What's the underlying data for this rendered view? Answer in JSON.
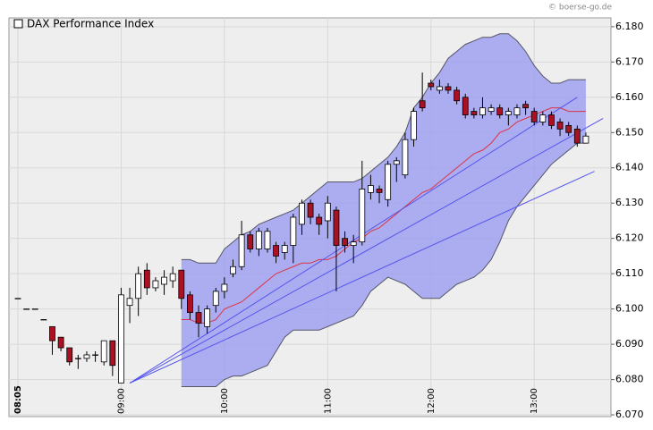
{
  "chart_data": {
    "type": "candlestick",
    "title": "DAX Performance Index",
    "source": "© boerse-go.de",
    "categories": [
      "08:05",
      null,
      null,
      null,
      null,
      null,
      null,
      null,
      null,
      null,
      null,
      null,
      "09:00",
      null,
      null,
      null,
      null,
      null,
      null,
      null,
      null,
      null,
      null,
      null,
      "10:00",
      null,
      null,
      null,
      null,
      null,
      null,
      null,
      null,
      null,
      null,
      null,
      "11:00",
      null,
      null,
      null,
      null,
      null,
      null,
      null,
      null,
      null,
      null,
      null,
      "12:00",
      null,
      null,
      null,
      null,
      null,
      null,
      null,
      null,
      null,
      null,
      null,
      "13:00",
      null,
      null,
      null,
      null,
      null,
      null
    ],
    "open": [
      6.103,
      6.1,
      6.1,
      6.097,
      6.095,
      6.092,
      6.089,
      6.086,
      6.086,
      6.087,
      6.085,
      6.091,
      6.079,
      6.101,
      6.103,
      6.111,
      6.106,
      6.107,
      6.108,
      6.111,
      6.104,
      6.099,
      6.095,
      6.101,
      6.105,
      6.11,
      6.112,
      6.121,
      6.117,
      6.117,
      6.118,
      6.116,
      6.118,
      6.124,
      6.13,
      6.126,
      6.125,
      6.128,
      6.12,
      6.118,
      6.119,
      6.133,
      6.134,
      6.131,
      6.141,
      6.138,
      6.148,
      6.159,
      6.164,
      6.162,
      6.163,
      6.162,
      6.16,
      6.156,
      6.155,
      6.156,
      6.157,
      6.155,
      6.155,
      6.158,
      6.156,
      6.153,
      6.155,
      6.153,
      6.152,
      6.151,
      6.147
    ],
    "high": [
      6.103,
      6.1,
      6.1,
      6.097,
      6.095,
      6.092,
      6.089,
      6.087,
      6.088,
      6.088,
      6.091,
      6.091,
      6.106,
      6.106,
      6.112,
      6.113,
      6.109,
      6.111,
      6.112,
      6.111,
      6.105,
      6.101,
      6.101,
      6.106,
      6.109,
      6.114,
      6.125,
      6.122,
      6.123,
      6.123,
      6.119,
      6.119,
      6.127,
      6.131,
      6.131,
      6.127,
      6.132,
      6.129,
      6.122,
      6.121,
      6.142,
      6.138,
      6.135,
      6.142,
      6.143,
      6.15,
      6.157,
      6.167,
      6.165,
      6.165,
      6.164,
      6.163,
      6.161,
      6.157,
      6.16,
      6.158,
      6.158,
      6.157,
      6.158,
      6.159,
      6.157,
      6.156,
      6.156,
      6.154,
      6.153,
      6.152,
      6.15
    ],
    "low": [
      6.103,
      6.1,
      6.1,
      6.097,
      6.087,
      6.088,
      6.084,
      6.083,
      6.085,
      6.085,
      6.084,
      6.081,
      6.079,
      6.096,
      6.098,
      6.104,
      6.105,
      6.104,
      6.106,
      6.1,
      6.097,
      6.092,
      6.093,
      6.099,
      6.103,
      6.109,
      6.111,
      6.116,
      6.115,
      6.116,
      6.113,
      6.114,
      6.113,
      6.121,
      6.124,
      6.121,
      6.12,
      6.105,
      6.116,
      6.113,
      6.118,
      6.131,
      6.13,
      6.129,
      6.136,
      6.137,
      6.146,
      6.156,
      6.162,
      6.161,
      6.161,
      6.158,
      6.154,
      6.154,
      6.154,
      6.155,
      6.154,
      6.152,
      6.154,
      6.155,
      6.152,
      6.152,
      6.151,
      6.149,
      6.149,
      6.146,
      6.147
    ],
    "close": [
      6.103,
      6.1,
      6.1,
      6.097,
      6.091,
      6.089,
      6.085,
      6.086,
      6.087,
      6.087,
      6.091,
      6.084,
      6.104,
      6.103,
      6.11,
      6.106,
      6.108,
      6.109,
      6.11,
      6.103,
      6.099,
      6.096,
      6.1,
      6.105,
      6.107,
      6.112,
      6.121,
      6.117,
      6.122,
      6.122,
      6.115,
      6.118,
      6.126,
      6.13,
      6.126,
      6.124,
      6.13,
      6.118,
      6.118,
      6.119,
      6.134,
      6.135,
      6.133,
      6.141,
      6.142,
      6.148,
      6.156,
      6.157,
      6.163,
      6.163,
      6.162,
      6.159,
      6.155,
      6.155,
      6.157,
      6.157,
      6.155,
      6.156,
      6.157,
      6.157,
      6.153,
      6.155,
      6.152,
      6.151,
      6.15,
      6.147,
      6.149
    ],
    "up_color": "#ffffff",
    "down_color": "#aa1122",
    "bands": {
      "fill": "#9a9cf0",
      "edge_color": "#555566",
      "middle_color": "#dd3344",
      "upper": [
        null,
        null,
        null,
        null,
        null,
        null,
        null,
        null,
        null,
        null,
        null,
        null,
        null,
        null,
        null,
        null,
        null,
        null,
        null,
        6.114,
        6.114,
        6.113,
        6.113,
        6.113,
        6.117,
        6.119,
        6.121,
        6.122,
        6.124,
        6.125,
        6.126,
        6.127,
        6.128,
        6.13,
        6.132,
        6.134,
        6.136,
        6.136,
        6.136,
        6.136,
        6.137,
        6.139,
        6.141,
        6.143,
        6.146,
        6.15,
        6.157,
        6.16,
        6.164,
        6.167,
        6.171,
        6.173,
        6.175,
        6.176,
        6.177,
        6.177,
        6.178,
        6.178,
        6.176,
        6.173,
        6.169,
        6.166,
        6.164,
        6.164,
        6.165,
        6.165,
        6.165
      ],
      "lower": [
        null,
        null,
        null,
        null,
        null,
        null,
        null,
        null,
        null,
        null,
        null,
        null,
        null,
        null,
        null,
        null,
        null,
        null,
        null,
        6.078,
        6.078,
        6.078,
        6.078,
        6.078,
        6.08,
        6.081,
        6.081,
        6.082,
        6.083,
        6.084,
        6.088,
        6.092,
        6.094,
        6.094,
        6.094,
        6.094,
        6.095,
        6.096,
        6.097,
        6.098,
        6.101,
        6.105,
        6.107,
        6.109,
        6.108,
        6.107,
        6.105,
        6.103,
        6.103,
        6.103,
        6.105,
        6.107,
        6.108,
        6.109,
        6.111,
        6.114,
        6.119,
        6.125,
        6.129,
        6.132,
        6.135,
        6.138,
        6.141,
        6.143,
        6.145,
        6.147,
        6.147
      ],
      "middle": [
        null,
        null,
        null,
        null,
        null,
        null,
        null,
        null,
        null,
        null,
        null,
        null,
        null,
        null,
        null,
        null,
        null,
        null,
        null,
        6.097,
        6.097,
        6.096,
        6.096,
        6.097,
        6.1,
        6.101,
        6.102,
        6.104,
        6.106,
        6.108,
        6.11,
        6.111,
        6.112,
        6.113,
        6.113,
        6.114,
        6.114,
        6.115,
        6.117,
        6.119,
        6.12,
        6.122,
        6.123,
        6.125,
        6.127,
        6.129,
        6.131,
        6.133,
        6.134,
        6.136,
        6.138,
        6.14,
        6.142,
        6.144,
        6.145,
        6.147,
        6.15,
        6.151,
        6.153,
        6.154,
        6.155,
        6.156,
        6.157,
        6.157,
        6.156,
        6.156,
        6.156
      ]
    },
    "trend_color": "#5555ee",
    "trend_lines": [
      {
        "start": [
          13,
          6.079
        ],
        "end": [
          65,
          6.16
        ]
      },
      {
        "start": [
          13,
          6.079
        ],
        "end": [
          68,
          6.154
        ]
      },
      {
        "start": [
          13,
          6.079
        ],
        "end": [
          67,
          6.139
        ]
      }
    ],
    "ylim": [
      6.0695,
      6.1825
    ],
    "yticks": [
      {
        "value": 6.07,
        "label": "6.070"
      },
      {
        "value": 6.08,
        "label": "6.080"
      },
      {
        "value": 6.09,
        "label": "6.090"
      },
      {
        "value": 6.1,
        "label": "6.100"
      },
      {
        "value": 6.11,
        "label": "6.110"
      },
      {
        "value": 6.12,
        "label": "6.120"
      },
      {
        "value": 6.13,
        "label": "6.130"
      },
      {
        "value": 6.14,
        "label": "6.140"
      },
      {
        "value": 6.15,
        "label": "6.150"
      },
      {
        "value": 6.16,
        "label": "6.160"
      },
      {
        "value": 6.17,
        "label": "6.170"
      },
      {
        "value": 6.18,
        "label": "6.180"
      }
    ],
    "grid": true
  }
}
